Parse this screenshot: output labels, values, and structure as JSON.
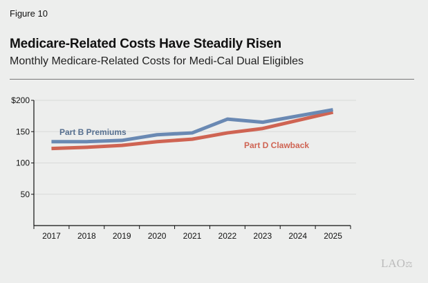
{
  "figure_label": "Figure 10",
  "logo": "LAO",
  "chart_data": {
    "type": "line",
    "title": "Medicare-Related Costs Have Steadily Risen",
    "subtitle": "Monthly Medicare-Related Costs for Medi-Cal Dual Eligibles",
    "xlabel": "",
    "ylabel": "",
    "categories": [
      "2017",
      "2018",
      "2019",
      "2020",
      "2021",
      "2022",
      "2023",
      "2024",
      "2025"
    ],
    "ylim": [
      0,
      200
    ],
    "yticks": [
      50,
      100,
      150,
      200
    ],
    "ytick_labels": [
      "50",
      "100",
      "150",
      "$200"
    ],
    "grid": true,
    "series": [
      {
        "name": "Part B Premiums",
        "color": "#6a89b3",
        "values": [
          134,
          134,
          136,
          145,
          148,
          170,
          165,
          175,
          185
        ]
      },
      {
        "name": "Part D Clawback",
        "color": "#cf6453",
        "values": [
          123,
          125,
          128,
          134,
          138,
          148,
          155,
          168,
          181
        ]
      }
    ]
  }
}
